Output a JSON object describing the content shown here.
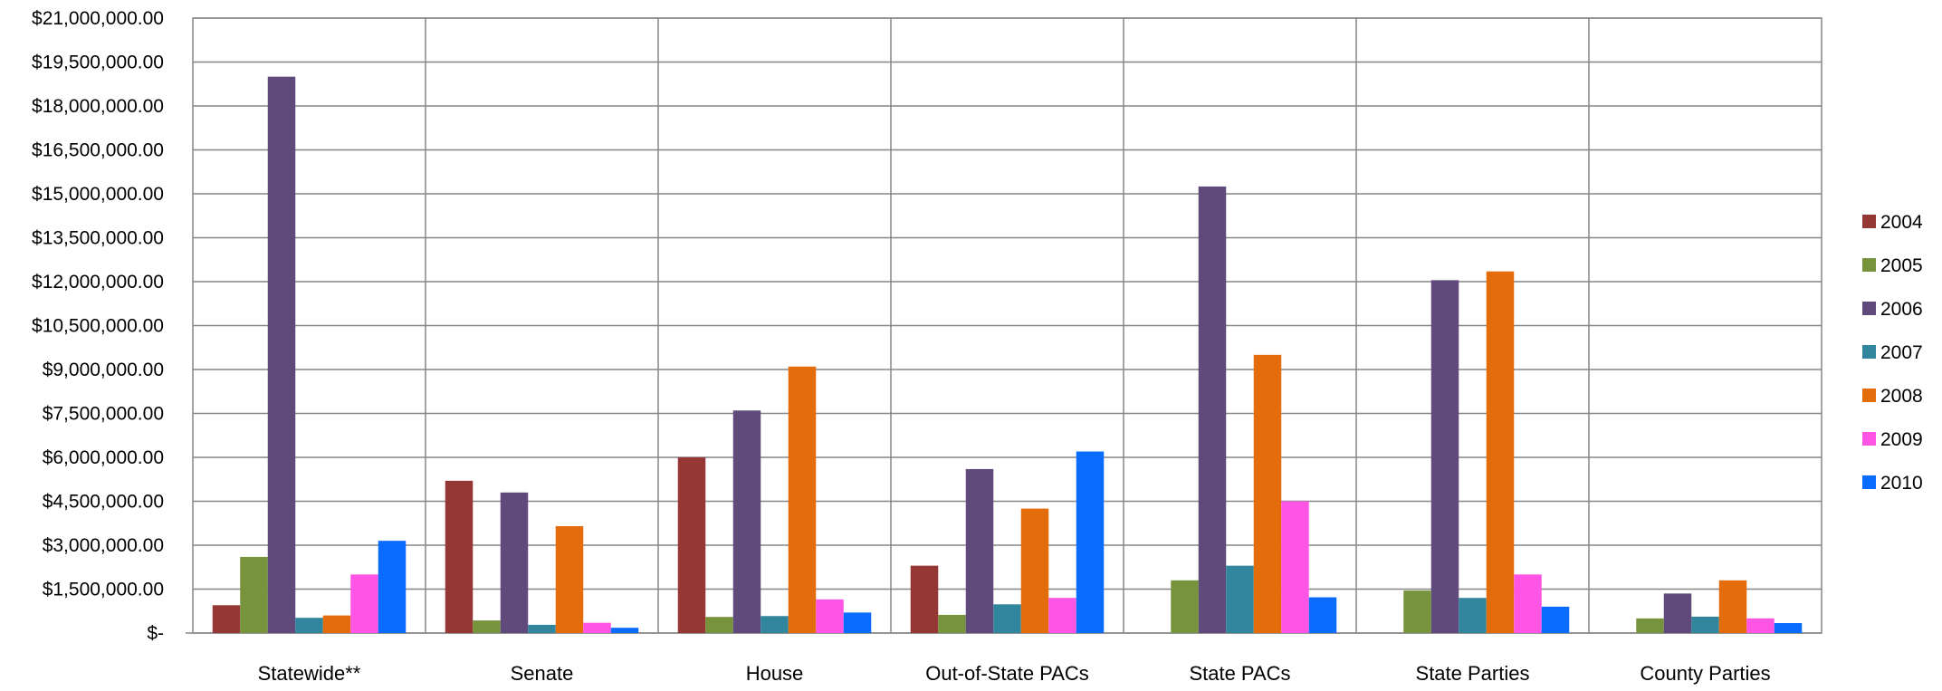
{
  "chart_data": {
    "type": "bar",
    "title": "",
    "xlabel": "",
    "ylabel": "",
    "ylim": [
      0,
      21000000
    ],
    "grid": true,
    "legend_position": "right",
    "y_ticks": [
      0,
      1500000,
      3000000,
      4500000,
      6000000,
      7500000,
      9000000,
      10500000,
      12000000,
      13500000,
      15000000,
      16500000,
      18000000,
      19500000,
      21000000
    ],
    "y_tick_labels": [
      "$-",
      "$1,500,000.00",
      "$3,000,000.00",
      "$4,500,000.00",
      "$6,000,000.00",
      "$7,500,000.00",
      "$9,000,000.00",
      "$10,500,000.00",
      "$12,000,000.00",
      "$13,500,000.00",
      "$15,000,000.00",
      "$16,500,000.00",
      "$18,000,000.00",
      "$19,500,000.00",
      "$21,000,000.00"
    ],
    "categories": [
      "Statewide**",
      "Senate",
      "House",
      "Out-of-State PACs",
      "State PACs",
      "State Parties",
      "County Parties"
    ],
    "series": [
      {
        "name": "2004",
        "color": "#953735",
        "values": [
          950000,
          5200000,
          6000000,
          2300000,
          0,
          0,
          0
        ]
      },
      {
        "name": "2005",
        "color": "#77933C",
        "values": [
          2600000,
          430000,
          550000,
          620000,
          1800000,
          1450000,
          500000
        ]
      },
      {
        "name": "2006",
        "color": "#604A7B",
        "values": [
          19000000,
          4800000,
          7600000,
          5600000,
          15250000,
          12050000,
          1350000
        ]
      },
      {
        "name": "2007",
        "color": "#31859C",
        "values": [
          520000,
          280000,
          580000,
          980000,
          2300000,
          1200000,
          560000
        ]
      },
      {
        "name": "2008",
        "color": "#E46C0A",
        "values": [
          600000,
          3650000,
          9100000,
          4250000,
          9500000,
          12350000,
          1800000
        ]
      },
      {
        "name": "2009",
        "color": "#FF55E5",
        "values": [
          2000000,
          350000,
          1150000,
          1200000,
          4500000,
          2000000,
          500000
        ]
      },
      {
        "name": "2010",
        "color": "#0A6CFF",
        "values": [
          3150000,
          180000,
          700000,
          6200000,
          1220000,
          900000,
          340000
        ]
      }
    ]
  }
}
